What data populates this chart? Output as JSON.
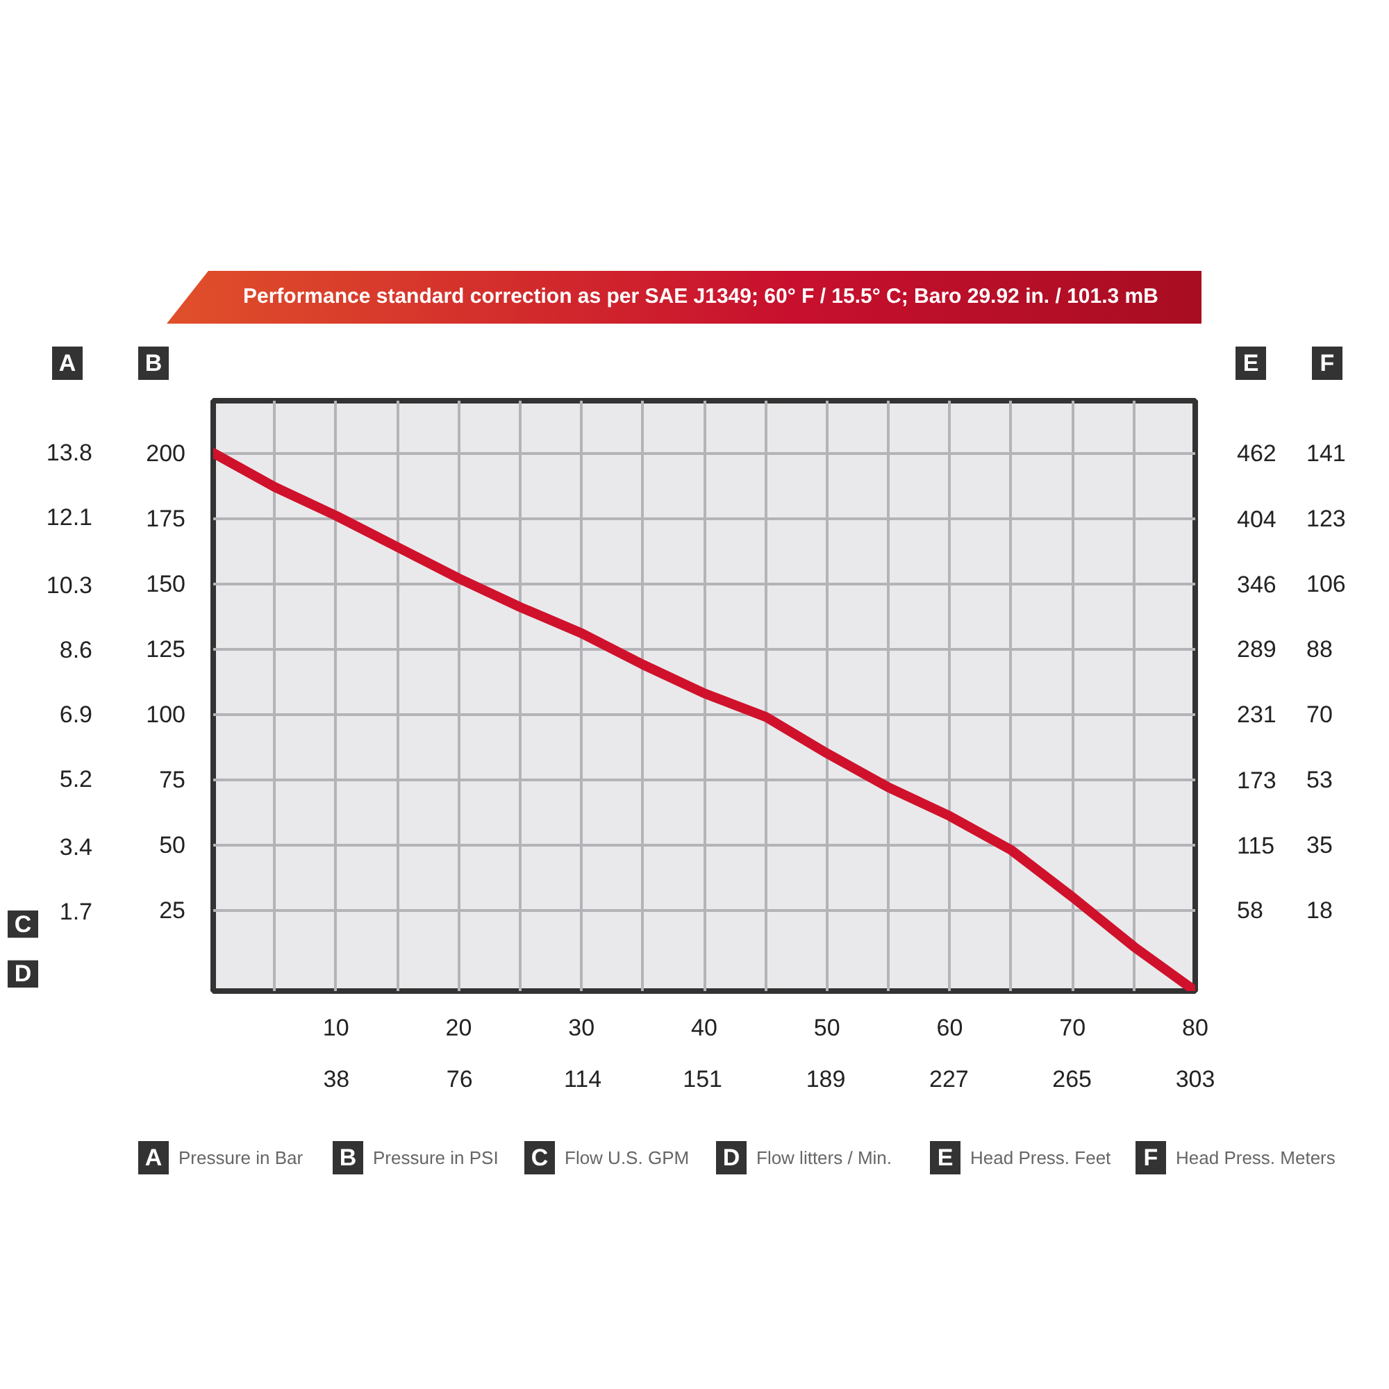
{
  "chart_data": {
    "type": "line",
    "title": "Performance standard correction as per SAE J1349;  60° F / 15.5° C;  Baro 29.92 in. / 101.3 mB",
    "xlabel": "C",
    "x2label": "D",
    "ylabel": "B",
    "y2label": "A",
    "y3label": "E",
    "x": [
      0,
      5,
      10,
      15,
      20,
      25,
      30,
      35,
      40,
      45,
      50,
      55,
      60,
      65,
      70,
      75,
      80
    ],
    "series": [
      {
        "color": "#d0112b",
        "values": [
          200,
          187,
          176,
          164,
          152,
          141,
          131,
          119,
          108,
          99,
          85,
          72,
          61,
          48,
          30,
          11,
          -6
        ]
      }
    ],
    "xlim": [
      0,
      80
    ],
    "xticks": [
      {
        "value": 5,
        "label": null
      },
      10,
      {
        "value": 15,
        "label": null
      },
      20,
      {
        "value": 25,
        "label": null
      },
      30,
      {
        "value": 35,
        "label": null
      },
      40,
      {
        "value": 45,
        "label": null
      },
      50,
      {
        "value": 55,
        "label": null
      },
      60,
      {
        "value": 65,
        "label": null
      },
      70,
      {
        "value": 75,
        "label": null
      },
      80
    ],
    "x2lim": [
      0,
      303
    ],
    "x2ticks": [
      38,
      76,
      114,
      151,
      189,
      227,
      265,
      303
    ],
    "ylim": [
      -6,
      220
    ],
    "yticks": [
      25,
      50,
      75,
      100,
      125,
      150,
      175,
      200
    ],
    "y2lim": [
      -0.41,
      15.16
    ],
    "y2ticks": [
      1.7,
      3.4,
      5.2,
      6.9,
      8.6,
      10.3,
      12.1,
      13.8
    ],
    "y3lim": [
      -13.9,
      508.2
    ],
    "y3ticks": [
      58,
      115,
      173,
      231,
      289,
      346,
      404,
      462
    ],
    "grid": true,
    "line_style": "solid",
    "marker": "none",
    "annotations": [
      "Pressure in Bar",
      "Pressure in PSI",
      "Flow U.S. GPM",
      "Flow litters / Min.",
      "Head Press. Feet",
      "Head Press. Meters",
      "F",
      "18",
      "35",
      "53",
      "70",
      "88",
      "106",
      "123",
      "141"
    ]
  }
}
